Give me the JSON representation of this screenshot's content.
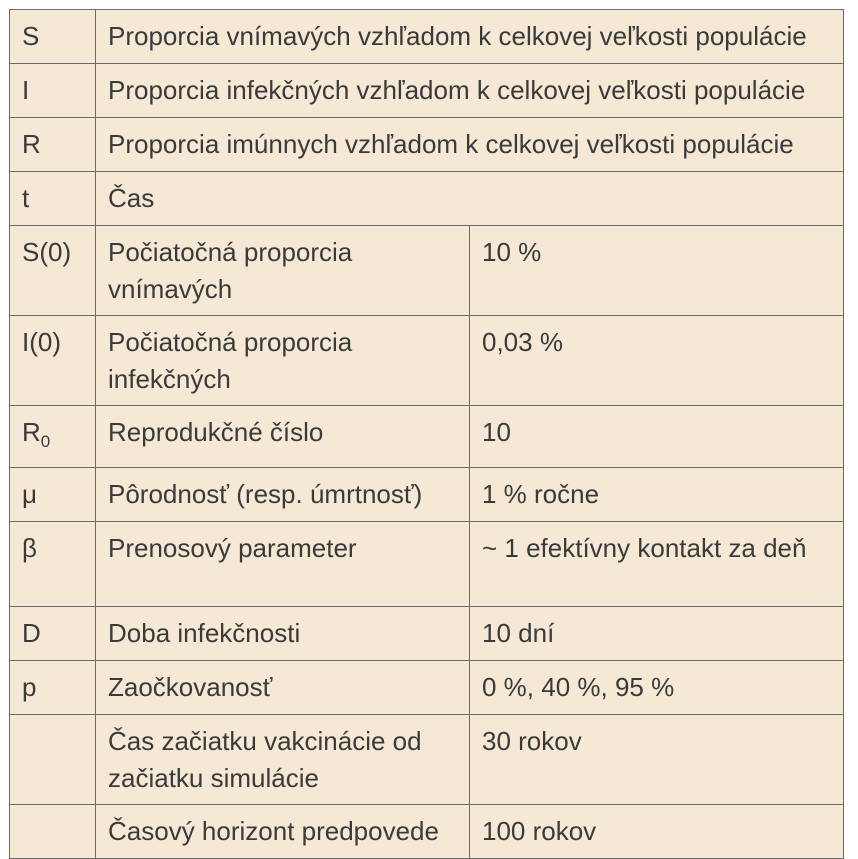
{
  "rows": [
    {
      "symbol": "S",
      "description": "Proporcia vnímavých vzhľadom k celkovej veľkosti populácie"
    },
    {
      "symbol": "I",
      "description": "Proporcia infekčných vzhľadom k celkovej veľkosti populácie"
    },
    {
      "symbol": "R",
      "description": "Proporcia imúnnych vzhľadom k celkovej veľkosti populácie"
    },
    {
      "symbol": "t",
      "description": "Čas"
    },
    {
      "symbol": "S(0)",
      "description": "Počiatočná proporcia vnímavých",
      "value": "10 %"
    },
    {
      "symbol": "I(0)",
      "description": "Počiatočná proporcia infekčných",
      "value": "0,03 %"
    },
    {
      "symbol": "R",
      "symbol_sub": "0",
      "description": "Reprodukčné číslo",
      "value": "10"
    },
    {
      "symbol": "μ",
      "description": "Pôrodnosť (resp. úmrtnosť)",
      "value": "1 % ročne"
    },
    {
      "symbol": "β",
      "description": "Prenosový parameter",
      "value": "~ 1 efektívny kontakt za deň"
    },
    {
      "symbol": "D",
      "description": "Doba infekčnosti",
      "value": "10 dní"
    },
    {
      "symbol": "p",
      "description": "Zaočkovanosť",
      "value": "0 %, 40 %, 95 %"
    },
    {
      "symbol": "",
      "description": "Čas začiatku vakcinácie od začiatku simulácie",
      "value": "30 rokov"
    },
    {
      "symbol": "",
      "description": "Časový horizont predpovede",
      "value": "100 rokov"
    }
  ]
}
